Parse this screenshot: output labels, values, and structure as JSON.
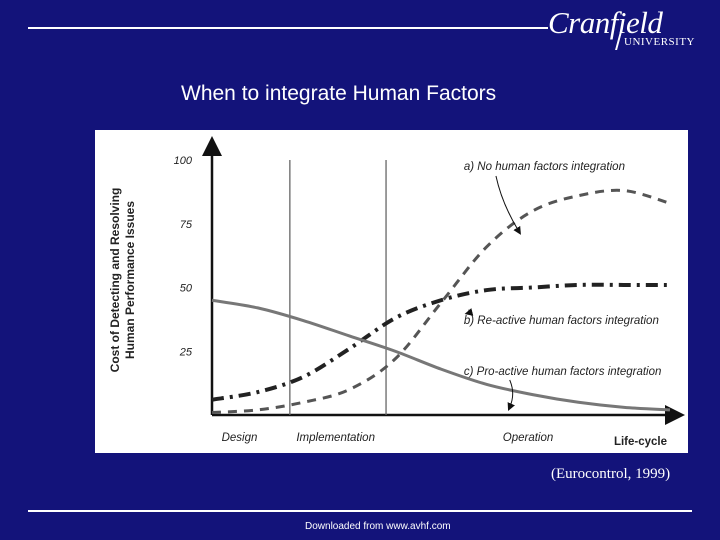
{
  "header": {
    "brand": "Cranfield",
    "brand_sub": "UNIVERSITY"
  },
  "slide": {
    "title": "When to integrate Human Factors",
    "citation": "(Eurocontrol, 1999)",
    "footer": "Downloaded from www.avhf.com"
  },
  "colors": {
    "background": "#13137a",
    "curve_a": "#555555",
    "curve_b": "#222222",
    "curve_c": "#777777"
  },
  "chart_data": {
    "type": "line",
    "ylabel": "Cost of Detecting and Resolving\nHuman Performance Issues",
    "xlabel": "Life-cycle",
    "ylim": [
      0,
      100
    ],
    "yticks": [
      25,
      50,
      75,
      100
    ],
    "phases": [
      "Design",
      "Implementation",
      "Operation"
    ],
    "x": [
      0.0,
      0.1,
      0.2,
      0.3,
      0.4,
      0.5,
      0.6,
      0.7,
      0.8,
      0.9,
      1.0
    ],
    "series": [
      {
        "name": "a) No human factors integration",
        "values": [
          1,
          2,
          5,
          10,
          22,
          44,
          66,
          80,
          86,
          88,
          83
        ],
        "style": "dash"
      },
      {
        "name": "b) Re-active human factors integration",
        "values": [
          6,
          9,
          15,
          26,
          38,
          45,
          49,
          50,
          51,
          51,
          51
        ],
        "style": "dashdot"
      },
      {
        "name": "c) Pro-active human factors integration",
        "values": [
          45,
          42,
          37,
          31,
          25,
          18,
          12,
          8,
          5,
          3,
          2
        ],
        "style": "solid"
      }
    ]
  }
}
